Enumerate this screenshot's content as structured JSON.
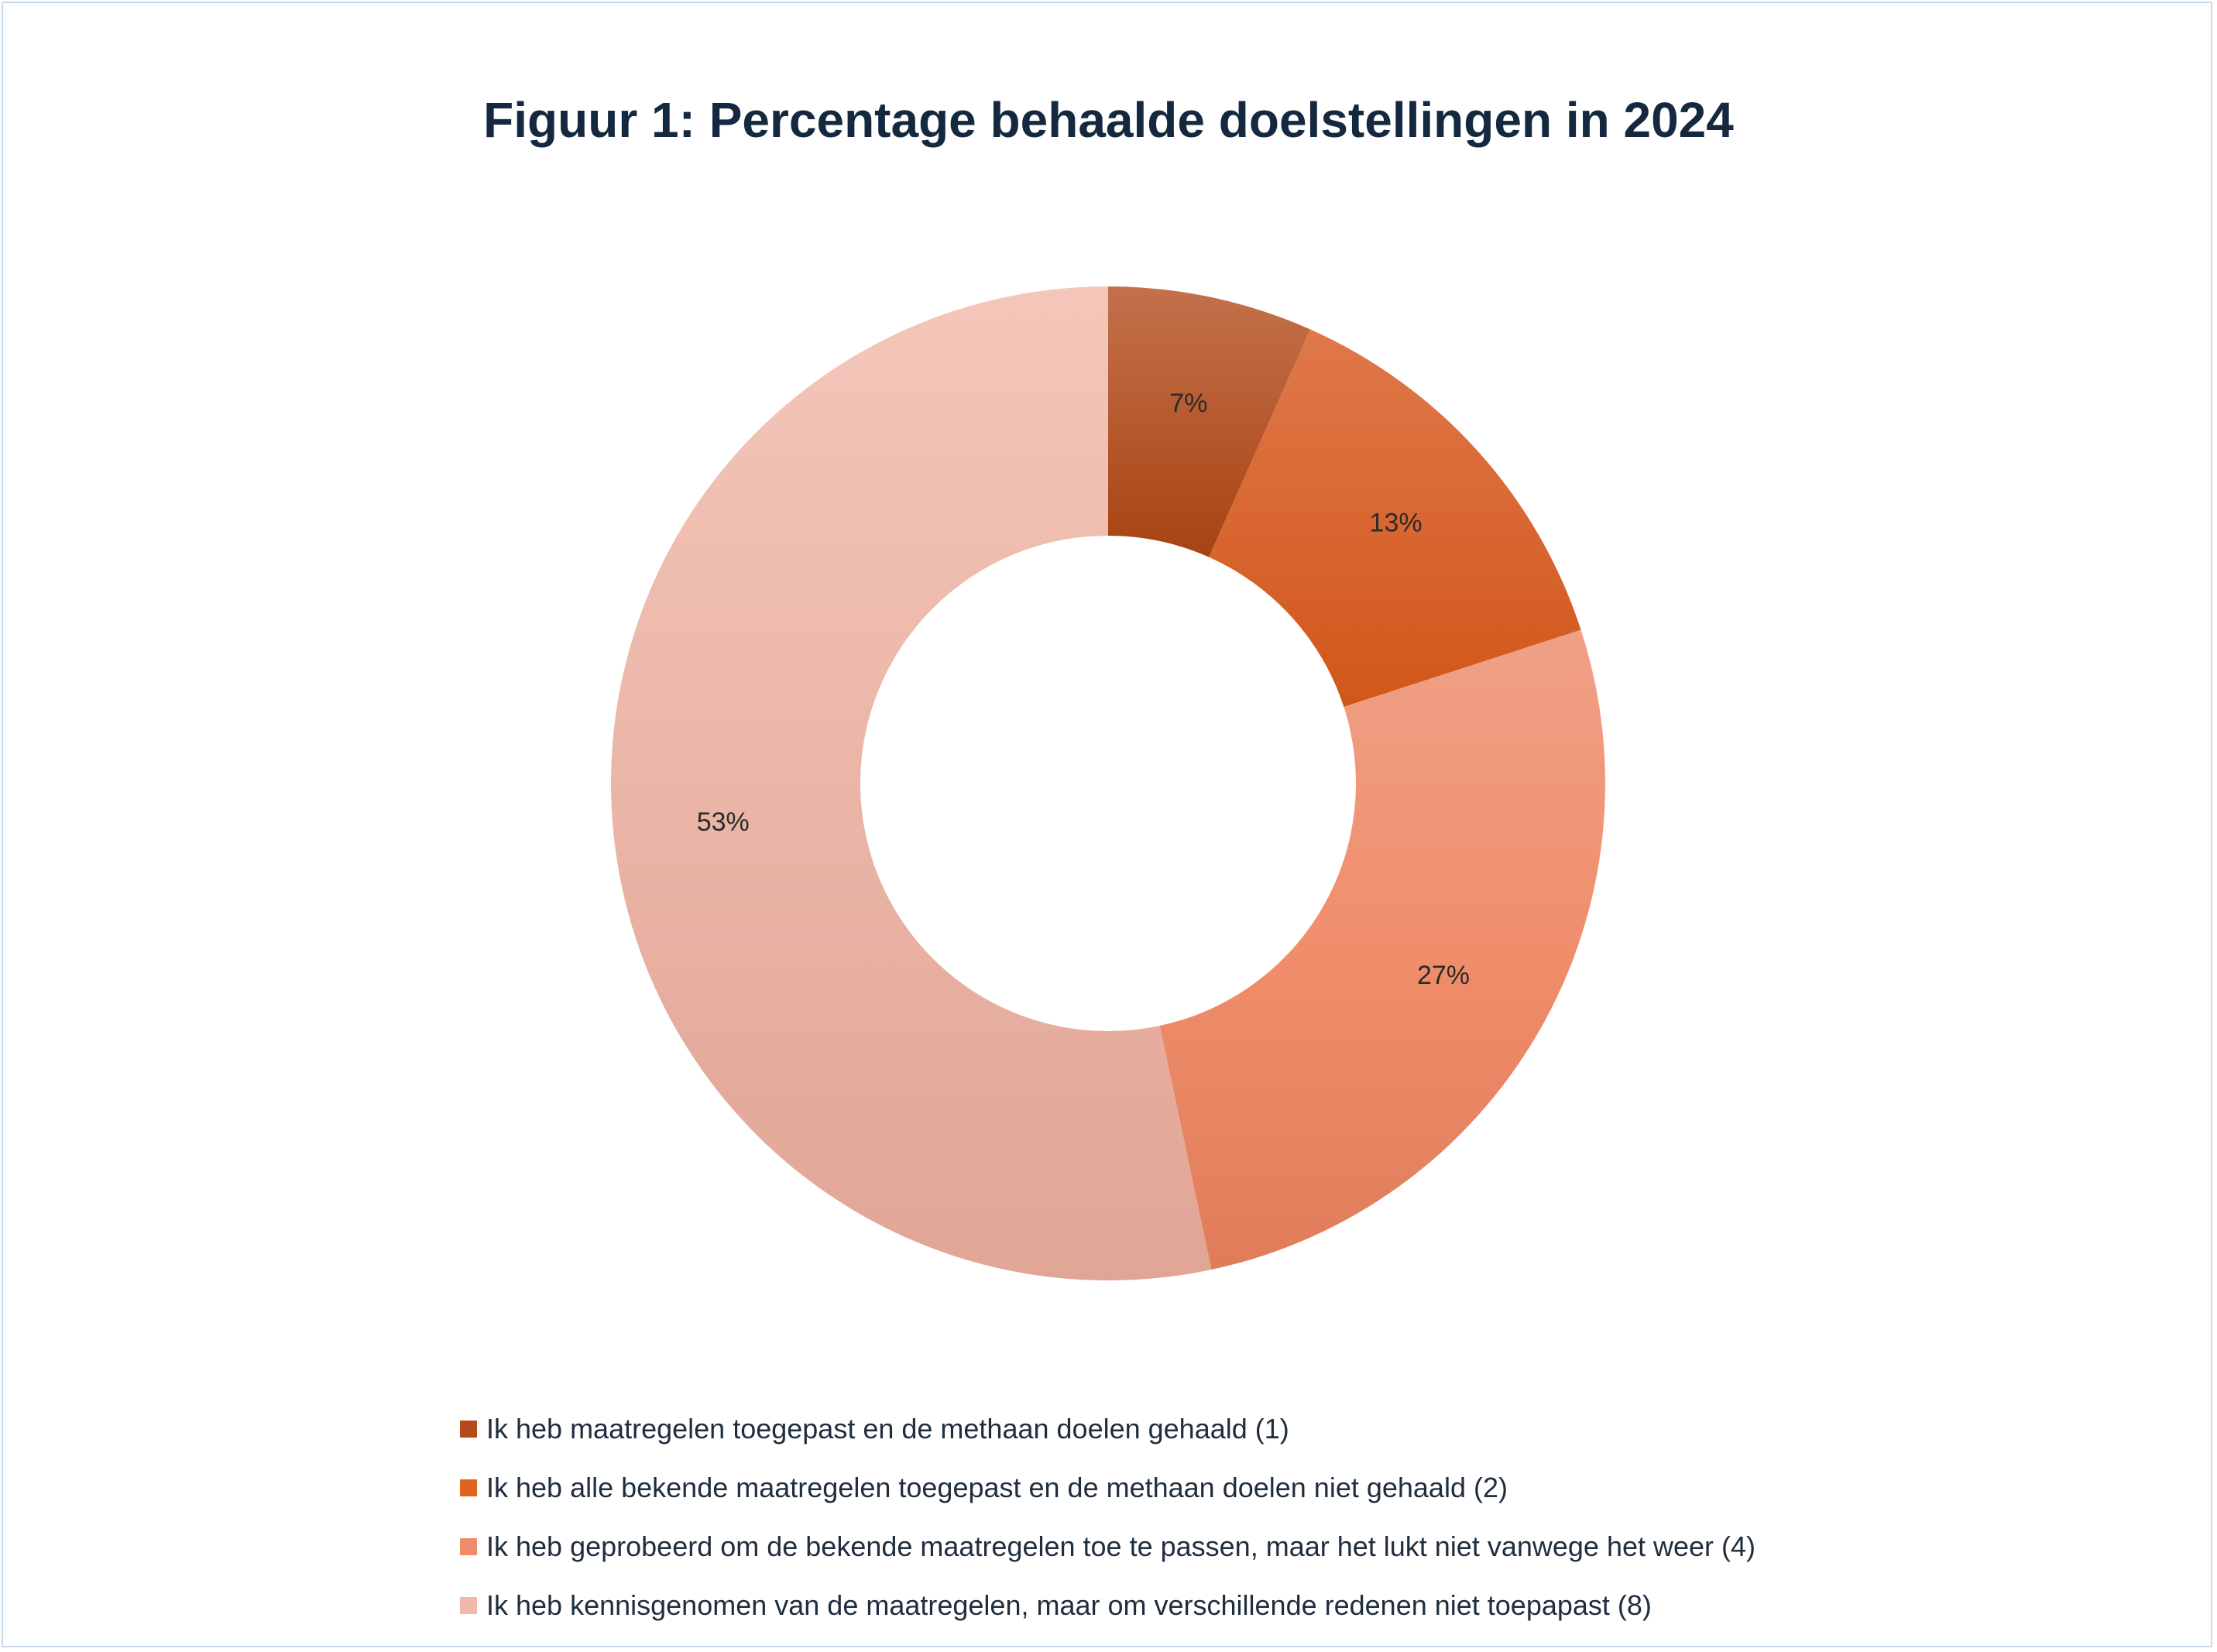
{
  "chart_data": {
    "type": "pie",
    "style": "donut",
    "title": "Figuur 1: Percentage behaalde doelstellingen in 2024",
    "categories": [
      "Ik heb maatregelen toegepast en de methaan doelen gehaald (1)",
      "Ik heb alle bekende maatregelen toegepast en de methaan doelen niet gehaald (2)",
      "Ik heb geprobeerd om de bekende maatregelen toe te passen, maar het lukt niet vanwege het weer (4)",
      "Ik heb kennisgenomen van de maatregelen, maar om verschillende redenen niet toepapast (8)"
    ],
    "values": [
      1,
      2,
      4,
      8
    ],
    "data_labels": [
      "7%",
      "13%",
      "27%",
      "53%"
    ],
    "colors": [
      "#b5491a",
      "#e0631f",
      "#ee8c6a",
      "#f0b8a8"
    ],
    "legend_position": "bottom"
  }
}
